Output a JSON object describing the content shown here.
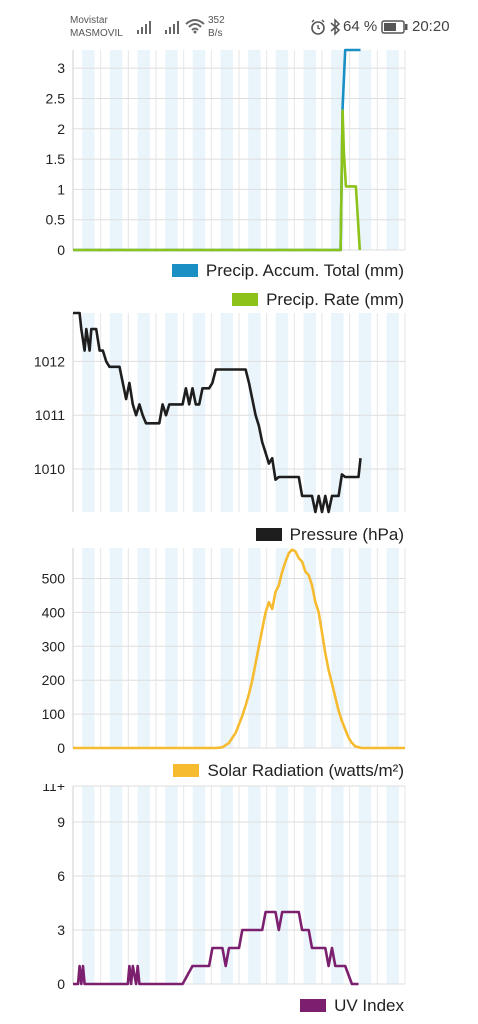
{
  "status_bar": {
    "carrier_line1": "Movistar",
    "carrier_line2": "MASMOVIL",
    "net_speed_value": "352",
    "net_speed_unit": "B/s",
    "battery": "64 %",
    "time": "20:20"
  },
  "chart_data": [
    {
      "type": "line",
      "name": "precip",
      "ylim": [
        0,
        3.3
      ],
      "yticks": [
        0,
        0.5,
        1,
        1.5,
        2,
        2.5,
        3
      ],
      "ytick_labels": [
        "0",
        "0.5",
        "1",
        "1.5",
        "2",
        "2.5",
        "3"
      ],
      "xlim": [
        0,
        100
      ],
      "series": [
        {
          "name": "Precip. Accum. Total (mm)",
          "color": "#1a8fc4",
          "x": [
            0,
            80.6,
            81.2,
            82,
            83.4,
            85,
            86.3,
            86.6
          ],
          "y": [
            0,
            0,
            2.35,
            3.3,
            3.3,
            3.3,
            3.3,
            3.3
          ]
        },
        {
          "name": "Precip. Rate (mm)",
          "color": "#8cc21a",
          "x": [
            0,
            80.6,
            81.2,
            81.6,
            82.2,
            83.6,
            85.2,
            86.4
          ],
          "y": [
            0,
            0,
            2.3,
            1.6,
            1.05,
            1.05,
            1.05,
            0
          ]
        }
      ]
    },
    {
      "type": "line",
      "name": "pressure",
      "ylim": [
        1009.2,
        1012.9
      ],
      "yticks": [
        1010,
        1011,
        1012
      ],
      "ytick_labels": [
        "1010",
        "1011",
        "1012"
      ],
      "xlim": [
        0,
        100
      ],
      "series": [
        {
          "name": "Pressure (hPa)",
          "color": "#1e1e1e",
          "x": [
            0,
            2,
            2.5,
            3.5,
            4,
            5,
            5.5,
            6,
            7,
            8,
            9,
            10,
            11,
            12,
            13,
            14,
            15,
            16,
            17,
            18,
            19,
            20,
            21,
            22,
            23,
            24,
            25,
            26,
            27,
            28,
            29,
            30,
            31,
            32,
            33,
            34,
            35,
            36,
            37,
            38,
            39,
            40,
            41,
            42,
            43,
            44,
            45,
            46,
            47,
            48,
            49,
            50,
            51,
            52,
            53,
            54,
            55,
            56,
            57,
            58,
            59,
            60,
            61,
            62,
            63,
            64,
            65,
            66,
            67,
            68,
            69,
            70,
            71,
            72,
            73,
            74,
            75,
            76,
            77,
            78,
            79,
            80,
            81,
            82,
            83,
            84,
            85,
            86,
            86.6
          ],
          "y": [
            1012.9,
            1012.9,
            1012.6,
            1012.2,
            1012.6,
            1012.2,
            1012.6,
            1012.6,
            1012.6,
            1012.2,
            1012.2,
            1012.0,
            1011.9,
            1011.9,
            1011.9,
            1011.9,
            1011.6,
            1011.3,
            1011.6,
            1011.2,
            1011.0,
            1011.2,
            1011.0,
            1010.85,
            1010.85,
            1010.85,
            1010.85,
            1010.85,
            1011.2,
            1011.0,
            1011.2,
            1011.2,
            1011.2,
            1011.2,
            1011.2,
            1011.5,
            1011.2,
            1011.5,
            1011.2,
            1011.2,
            1011.5,
            1011.5,
            1011.5,
            1011.6,
            1011.85,
            1011.85,
            1011.85,
            1011.85,
            1011.85,
            1011.85,
            1011.85,
            1011.85,
            1011.85,
            1011.85,
            1011.6,
            1011.3,
            1011.0,
            1010.8,
            1010.5,
            1010.3,
            1010.1,
            1010.2,
            1009.8,
            1009.85,
            1009.85,
            1009.85,
            1009.85,
            1009.85,
            1009.85,
            1009.85,
            1009.5,
            1009.5,
            1009.5,
            1009.5,
            1009.2,
            1009.5,
            1009.2,
            1009.5,
            1009.2,
            1009.5,
            1009.5,
            1009.5,
            1009.9,
            1009.85,
            1009.85,
            1009.85,
            1009.85,
            1009.85,
            1010.2
          ]
        }
      ]
    },
    {
      "type": "line",
      "name": "solar",
      "ylim": [
        0,
        590
      ],
      "yticks": [
        0,
        100,
        200,
        300,
        400,
        500
      ],
      "ytick_labels": [
        "0",
        "100",
        "200",
        "300",
        "400",
        "500"
      ],
      "xlim": [
        0,
        100
      ],
      "series": [
        {
          "name": "Solar Radiation (watts/m²)",
          "color": "#f6bb2f",
          "x": [
            0,
            10,
            20,
            30,
            33,
            35,
            37,
            39,
            41,
            43,
            45,
            47,
            49,
            50,
            51,
            52,
            53,
            54,
            55,
            56,
            57,
            58,
            59,
            60,
            61,
            62,
            63,
            64,
            65,
            66,
            67,
            68,
            69,
            70,
            71,
            72,
            73,
            74,
            75,
            76,
            77,
            78,
            79,
            80,
            81,
            82,
            83,
            84,
            85,
            86,
            87,
            88,
            90,
            95,
            100
          ],
          "y": [
            0,
            0,
            0,
            0,
            0,
            0,
            0,
            0,
            0,
            0,
            2,
            15,
            45,
            70,
            95,
            125,
            160,
            200,
            250,
            300,
            350,
            400,
            430,
            410,
            460,
            480,
            520,
            550,
            575,
            585,
            580,
            560,
            550,
            520,
            510,
            480,
            430,
            400,
            340,
            280,
            230,
            190,
            150,
            110,
            80,
            55,
            30,
            15,
            5,
            2,
            0,
            0,
            0,
            0,
            0
          ]
        }
      ]
    },
    {
      "type": "line",
      "name": "uv",
      "ylim": [
        0,
        11
      ],
      "yticks": [
        0,
        3,
        6,
        9,
        11
      ],
      "ytick_labels": [
        "0",
        "3",
        "6",
        "9",
        "11+"
      ],
      "xlim": [
        0,
        100
      ],
      "series": [
        {
          "name": "UV Index",
          "color": "#7d1f6f",
          "x": [
            0,
            1.5,
            2,
            2.5,
            3,
            3.5,
            4,
            15,
            16.5,
            17,
            17.5,
            18,
            19,
            19.5,
            20,
            33,
            36,
            37,
            38,
            39,
            40,
            41,
            42,
            43,
            45,
            46,
            47,
            48,
            49,
            50,
            51,
            52,
            53,
            54,
            55,
            56,
            57,
            58,
            59,
            60,
            61,
            62,
            63,
            64,
            65,
            66,
            67,
            68,
            69,
            70,
            71,
            72,
            73,
            74,
            75,
            76,
            77,
            78,
            79,
            80,
            81,
            82,
            84,
            86
          ],
          "y": [
            0,
            0,
            1,
            0,
            1,
            0,
            0,
            0,
            0,
            1,
            0,
            1,
            0,
            1,
            0,
            0,
            1,
            1,
            1,
            1,
            1,
            1,
            2,
            2,
            2,
            1,
            2,
            2,
            2,
            2,
            3,
            3,
            3,
            3,
            3,
            3,
            3,
            4,
            4,
            4,
            4,
            3,
            4,
            4,
            4,
            4,
            4,
            4,
            3,
            3,
            3,
            2,
            2,
            2,
            2,
            2,
            1,
            2,
            1,
            1,
            1,
            1,
            0,
            0
          ]
        }
      ]
    }
  ]
}
